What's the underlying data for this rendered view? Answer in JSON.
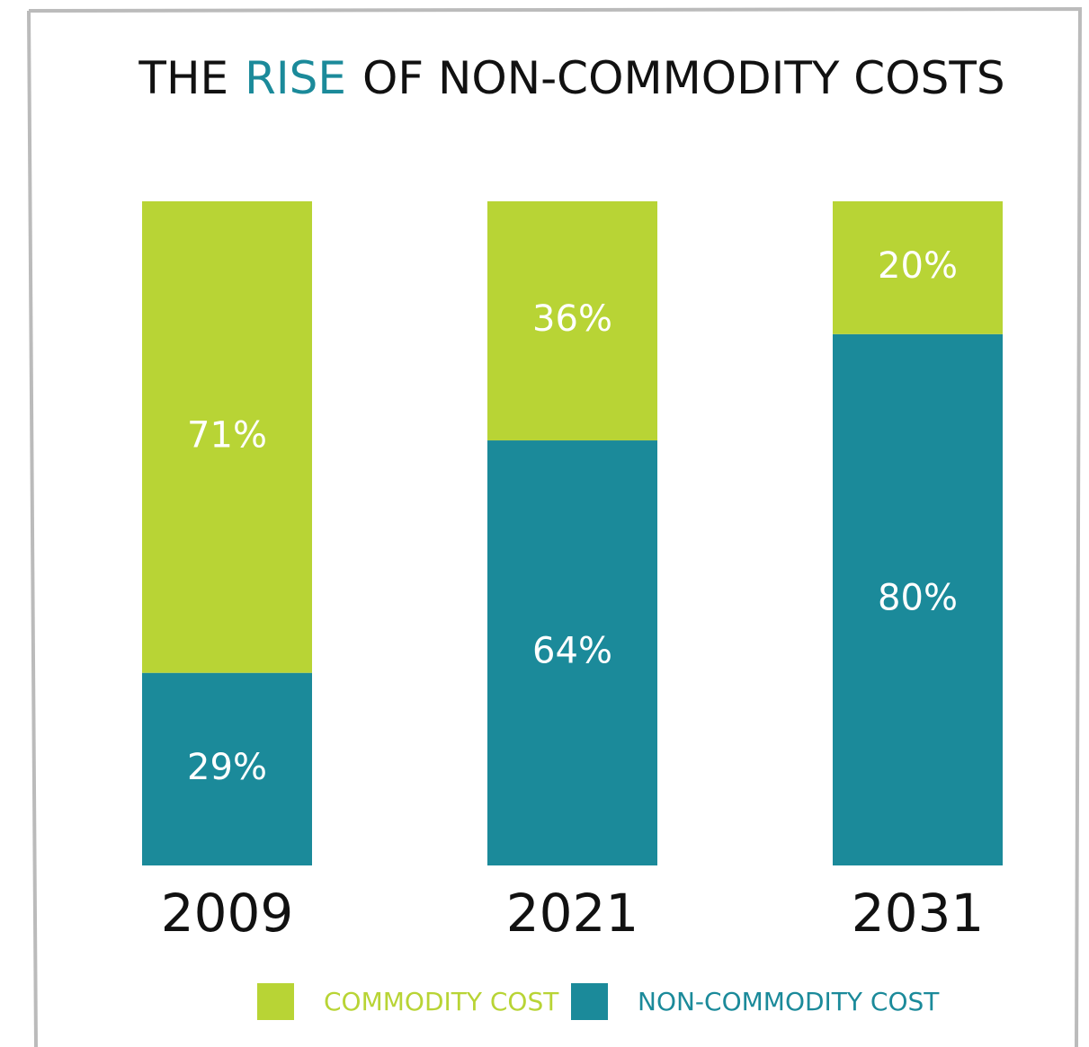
{
  "chart_data": {
    "type": "stacked_bar",
    "title": [
      {
        "text": "THE"
      },
      {
        "text": "RISE",
        "color": "#1b8a9a"
      },
      {
        "text": "OF NON-COMMODITY COSTS"
      }
    ],
    "categories": [
      "2009",
      "2021",
      "2031"
    ],
    "series": [
      {
        "name": "NON-COMMODITY COST",
        "color": "#1b8a9a",
        "values": [
          29,
          64,
          80
        ],
        "value_labels": [
          "29%",
          "64%",
          "80%"
        ]
      },
      {
        "name": "COMMODITY COST",
        "color": "#b8d435",
        "values": [
          71,
          36,
          20
        ],
        "value_labels": [
          "71%",
          "36%",
          "20%"
        ]
      }
    ],
    "legend_order": [
      1,
      0
    ]
  }
}
